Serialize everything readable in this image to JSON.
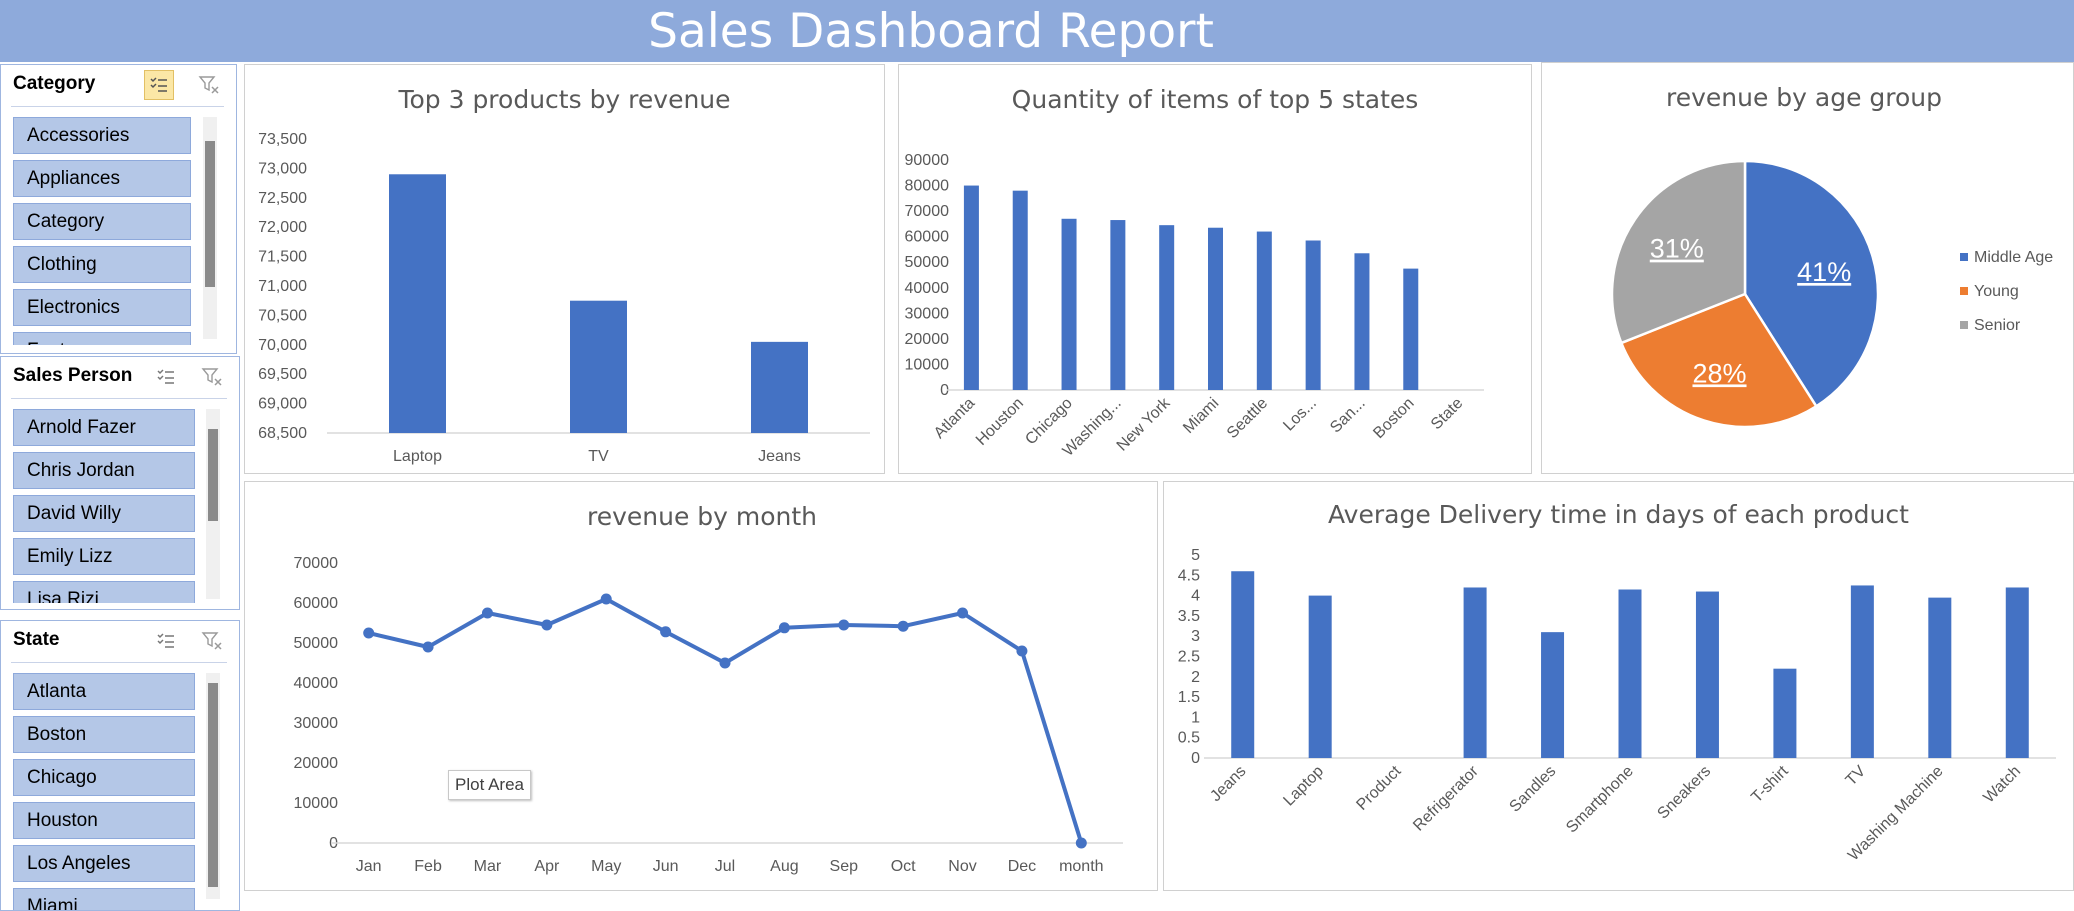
{
  "dashboard": {
    "title": "Sales Dashboard Report"
  },
  "slicers": {
    "category": {
      "title": "Category",
      "items": [
        "Accessories",
        "Appliances",
        "Category",
        "Clothing",
        "Electronics",
        "Footwear"
      ]
    },
    "sales_person": {
      "title": "Sales Person",
      "items": [
        "Arnold Fazer",
        "Chris Jordan",
        "David Willy",
        "Emily Lizz",
        "Lisa Rizi"
      ]
    },
    "state": {
      "title": "State",
      "items": [
        "Atlanta",
        "Boston",
        "Chicago",
        "Houston",
        "Los Angeles",
        "Miami"
      ]
    }
  },
  "tooltip": {
    "text": "Plot Area"
  },
  "colors": {
    "bar": "#4472c4",
    "orange": "#ed7d31",
    "gray": "#a5a5a5",
    "header": "#8eaadb",
    "slicer_item": "#b4c7e7"
  },
  "chart_data": [
    {
      "id": "top3",
      "type": "bar",
      "title": "Top 3 products by revenue",
      "categories": [
        "Laptop",
        "TV",
        "Jeans"
      ],
      "values": [
        72900,
        70750,
        70050
      ],
      "ylim": [
        68500,
        73500
      ],
      "yticks": [
        "68,500",
        "69,000",
        "69,500",
        "70,000",
        "70,500",
        "71,000",
        "71,500",
        "72,000",
        "72,500",
        "73,000",
        "73,500"
      ],
      "grid": false,
      "color": "#4472c4"
    },
    {
      "id": "states",
      "type": "bar",
      "title": "Quantity of items of top 5 states",
      "categories": [
        "Atlanta",
        "Houston",
        "Chicago",
        "Washing...",
        "New York",
        "Miami",
        "Seattle",
        "Los...",
        "San...",
        "Boston",
        "State"
      ],
      "values": [
        80000,
        78000,
        67000,
        66500,
        64500,
        63500,
        62000,
        58500,
        53500,
        47500,
        0
      ],
      "ylim": [
        0,
        90000
      ],
      "yticks": [
        "0",
        "10000",
        "20000",
        "30000",
        "40000",
        "50000",
        "60000",
        "70000",
        "80000",
        "90000"
      ],
      "grid": false,
      "color": "#4472c4"
    },
    {
      "id": "age",
      "type": "pie",
      "title": "revenue by age group",
      "labels": [
        "Middle Age",
        "Young",
        "Senior"
      ],
      "values": [
        41,
        28,
        31
      ],
      "data_labels": [
        "41%",
        "28%",
        "31%"
      ],
      "colors": [
        "#4472c4",
        "#ed7d31",
        "#a5a5a5"
      ],
      "legend": "right"
    },
    {
      "id": "month",
      "type": "line",
      "title": "revenue by month",
      "categories": [
        "Jan",
        "Feb",
        "Mar",
        "Apr",
        "May",
        "Jun",
        "Jul",
        "Aug",
        "Sep",
        "Oct",
        "Nov",
        "Dec",
        "month"
      ],
      "values": [
        52500,
        49000,
        57500,
        54500,
        61000,
        52800,
        45000,
        53800,
        54500,
        54200,
        57500,
        48000,
        0
      ],
      "ylim": [
        0,
        70000
      ],
      "yticks": [
        "0",
        "10000",
        "20000",
        "30000",
        "40000",
        "50000",
        "60000",
        "70000"
      ],
      "grid": false,
      "color": "#4472c4"
    },
    {
      "id": "delivery",
      "type": "bar",
      "title": "Average Delivery time in days of each product",
      "categories": [
        "Jeans",
        "Laptop",
        "Product",
        "Refrigerator",
        "Sandles",
        "Smartphone",
        "Sneakers",
        "T-shirt",
        "TV",
        "Washing Machine",
        "Watch"
      ],
      "values": [
        4.6,
        4.0,
        0,
        4.2,
        3.1,
        4.15,
        4.1,
        2.2,
        4.25,
        3.95,
        4.2
      ],
      "ylim": [
        0,
        5
      ],
      "yticks": [
        "0",
        "0.5",
        "1",
        "1.5",
        "2",
        "2.5",
        "3",
        "3.5",
        "4",
        "4.5",
        "5"
      ],
      "grid": false,
      "color": "#4472c4"
    }
  ]
}
